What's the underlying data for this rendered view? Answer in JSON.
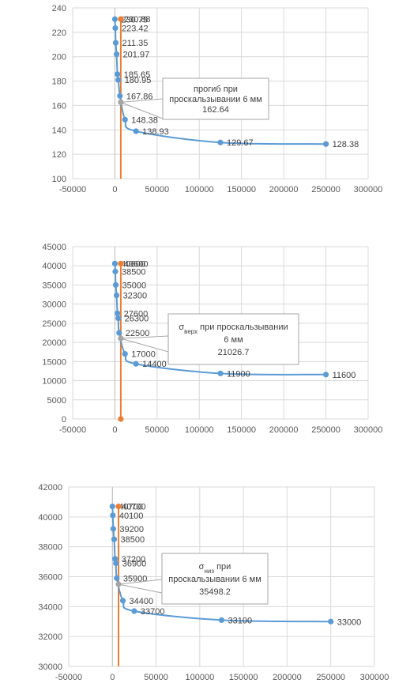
{
  "colors": {
    "series_main": "#5B9BD5",
    "series_marker": "#ED7D31",
    "grid": "#D9D9D9",
    "axis": "#BFBFBF",
    "callout_border": "#A6A6A6"
  },
  "chart_data": [
    {
      "type": "scatter",
      "title": "",
      "xlim": [
        -50000,
        300000
      ],
      "x_ticks": [
        -50000,
        0,
        50000,
        100000,
        150000,
        200000,
        250000,
        300000
      ],
      "x_tick_labels": [
        "-50000",
        "0",
        "50000",
        "100000",
        "150000",
        "200000",
        "250000",
        "300000"
      ],
      "ylim": [
        100,
        240
      ],
      "y_ticks": [
        100,
        120,
        140,
        160,
        180,
        200,
        220,
        240
      ],
      "y_tick_labels": [
        "100",
        "120",
        "140",
        "160",
        "180",
        "200",
        "220",
        "240"
      ],
      "grid": true,
      "series": [
        {
          "x": [
            0,
            500,
            1000,
            2000,
            3000,
            4000,
            6000,
            12000,
            25000,
            125000,
            250000
          ],
          "y": [
            230.75,
            223.42,
            211.35,
            201.97,
            185.65,
            180.95,
            167.86,
            148.38,
            138.93,
            129.67,
            128.38
          ],
          "labels": [
            "230.75",
            "223.42",
            "211.35",
            "201.97",
            "185.65",
            "180.95",
            "167.86",
            "148.38",
            "138.93",
            "129.67",
            "128.38"
          ],
          "label_dx": [
            8,
            8,
            8,
            8,
            8,
            8,
            8,
            8,
            8,
            8,
            8
          ]
        }
      ],
      "marker_series": {
        "x": [
          7000,
          7000
        ],
        "y": [
          230.88,
          100
        ],
        "label": "230.88",
        "show_bottom_marker": false
      },
      "callout": {
        "lines": [
          "прогиб при",
          "проскальзывании 6 мм",
          "162.64"
        ],
        "x": 7000,
        "y": 162.64
      }
    },
    {
      "type": "scatter",
      "title": "",
      "xlim": [
        -50000,
        300000
      ],
      "x_ticks": [
        -50000,
        0,
        50000,
        100000,
        150000,
        200000,
        250000,
        300000
      ],
      "x_tick_labels": [
        "-50000",
        "0",
        "50000",
        "100000",
        "150000",
        "200000",
        "250000",
        "300000"
      ],
      "ylim": [
        0,
        45000
      ],
      "y_ticks": [
        0,
        5000,
        10000,
        15000,
        20000,
        25000,
        30000,
        35000,
        40000,
        45000
      ],
      "y_tick_labels": [
        "0",
        "5000",
        "10000",
        "15000",
        "20000",
        "25000",
        "30000",
        "35000",
        "40000",
        "45000"
      ],
      "grid": true,
      "series": [
        {
          "x": [
            0,
            500,
            1000,
            2000,
            3000,
            4000,
            5000,
            12000,
            25000,
            125000,
            250000
          ],
          "y": [
            40600,
            38500,
            35000,
            32300,
            27600,
            26300,
            22500,
            17000,
            14400,
            11900,
            11600
          ],
          "labels": [
            "40600",
            "38500",
            "35000",
            "32300",
            "27600",
            "26300",
            "22500",
            "17000",
            "14400",
            "11900",
            "11600"
          ],
          "label_dx": [
            8,
            8,
            8,
            8,
            8,
            8,
            8,
            8,
            8,
            8,
            8
          ]
        }
      ],
      "marker_series": {
        "x": [
          7000,
          7000
        ],
        "y": [
          40600,
          0
        ],
        "label": "40600",
        "show_bottom_marker": true
      },
      "callout": {
        "lines": [
          "σверх при проскальзывании",
          "6 мм",
          "21026.7"
        ],
        "x": 7000,
        "y": 21026.7
      }
    },
    {
      "type": "scatter",
      "title": "",
      "xlim": [
        -50000,
        300000
      ],
      "x_ticks": [
        -50000,
        0,
        50000,
        100000,
        150000,
        200000,
        250000,
        300000
      ],
      "x_tick_labels": [
        "-50000",
        "0",
        "50000",
        "100000",
        "150000",
        "200000",
        "250000",
        "300000"
      ],
      "ylim": [
        30000,
        42000
      ],
      "y_ticks": [
        30000,
        32000,
        34000,
        36000,
        38000,
        40000,
        42000
      ],
      "y_tick_labels": [
        "30000",
        "32000",
        "34000",
        "36000",
        "38000",
        "40000",
        "42000"
      ],
      "grid": true,
      "series": [
        {
          "x": [
            0,
            500,
            1000,
            2000,
            3000,
            4000,
            5000,
            12000,
            25000,
            125000,
            250000
          ],
          "y": [
            40700,
            40100,
            39200,
            38500,
            37200,
            36900,
            35900,
            34400,
            33700,
            33100,
            33000
          ],
          "labels": [
            "40700",
            "40100",
            "39200",
            "38500",
            "37200",
            "36900",
            "35900",
            "34400",
            "33700",
            "33100",
            "33000"
          ],
          "label_dx": [
            8,
            8,
            8,
            8,
            8,
            8,
            8,
            8,
            8,
            8,
            8
          ]
        }
      ],
      "marker_series": {
        "x": [
          7000,
          7000
        ],
        "y": [
          40700,
          30000
        ],
        "label": "40700",
        "show_bottom_marker": false
      },
      "callout": {
        "lines": [
          "σниз при",
          "проскальзывании 6 мм",
          "35498.2"
        ],
        "x": 7000,
        "y": 35498.2
      }
    }
  ]
}
